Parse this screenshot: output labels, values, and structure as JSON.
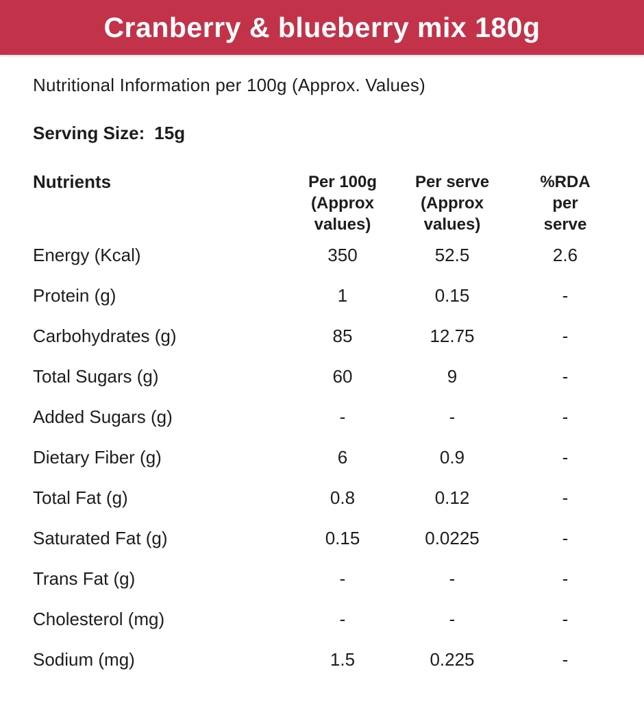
{
  "header": {
    "title": "Cranberry & blueberry mix 180g",
    "bar_color": "#c23349",
    "title_color": "#ffffff"
  },
  "subtitle": "Nutritional Information per 100g (Approx. Values)",
  "serving": {
    "label": "Serving Size:",
    "value": "15g"
  },
  "table": {
    "columns": [
      {
        "label": "Nutrients",
        "lines": [
          "Nutrients"
        ]
      },
      {
        "label": "Per 100g (Approx values)",
        "lines": [
          "Per 100g",
          "(Approx",
          "values)"
        ]
      },
      {
        "label": "Per serve (Approx values)",
        "lines": [
          "Per serve",
          "(Approx",
          "values)"
        ]
      },
      {
        "label": "%RDA per serve",
        "lines": [
          "%RDA",
          "per",
          "serve"
        ]
      }
    ],
    "rows": [
      {
        "label": "Energy (Kcal)",
        "per_100g": "350",
        "per_serve": "52.5",
        "rda_per_serve": "2.6"
      },
      {
        "label": "Protein (g)",
        "per_100g": "1",
        "per_serve": "0.15",
        "rda_per_serve": "-"
      },
      {
        "label": "Carbohydrates (g)",
        "per_100g": "85",
        "per_serve": "12.75",
        "rda_per_serve": "-"
      },
      {
        "label": "Total Sugars (g)",
        "per_100g": "60",
        "per_serve": "9",
        "rda_per_serve": "-"
      },
      {
        "label": "Added Sugars (g)",
        "per_100g": "-",
        "per_serve": "-",
        "rda_per_serve": "-"
      },
      {
        "label": "Dietary Fiber (g)",
        "per_100g": "6",
        "per_serve": "0.9",
        "rda_per_serve": "-"
      },
      {
        "label": "Total Fat (g)",
        "per_100g": "0.8",
        "per_serve": "0.12",
        "rda_per_serve": "-"
      },
      {
        "label": "Saturated Fat (g)",
        "per_100g": "0.15",
        "per_serve": "0.0225",
        "rda_per_serve": "-"
      },
      {
        "label": "Trans Fat (g)",
        "per_100g": "-",
        "per_serve": "-",
        "rda_per_serve": "-"
      },
      {
        "label": "Cholesterol (mg)",
        "per_100g": "-",
        "per_serve": "-",
        "rda_per_serve": "-"
      },
      {
        "label": "Sodium (mg)",
        "per_100g": "1.5",
        "per_serve": "0.225",
        "rda_per_serve": "-"
      }
    ]
  },
  "colors": {
    "accent": "#c23349",
    "text": "#1d1d1d",
    "background": "#ffffff"
  }
}
